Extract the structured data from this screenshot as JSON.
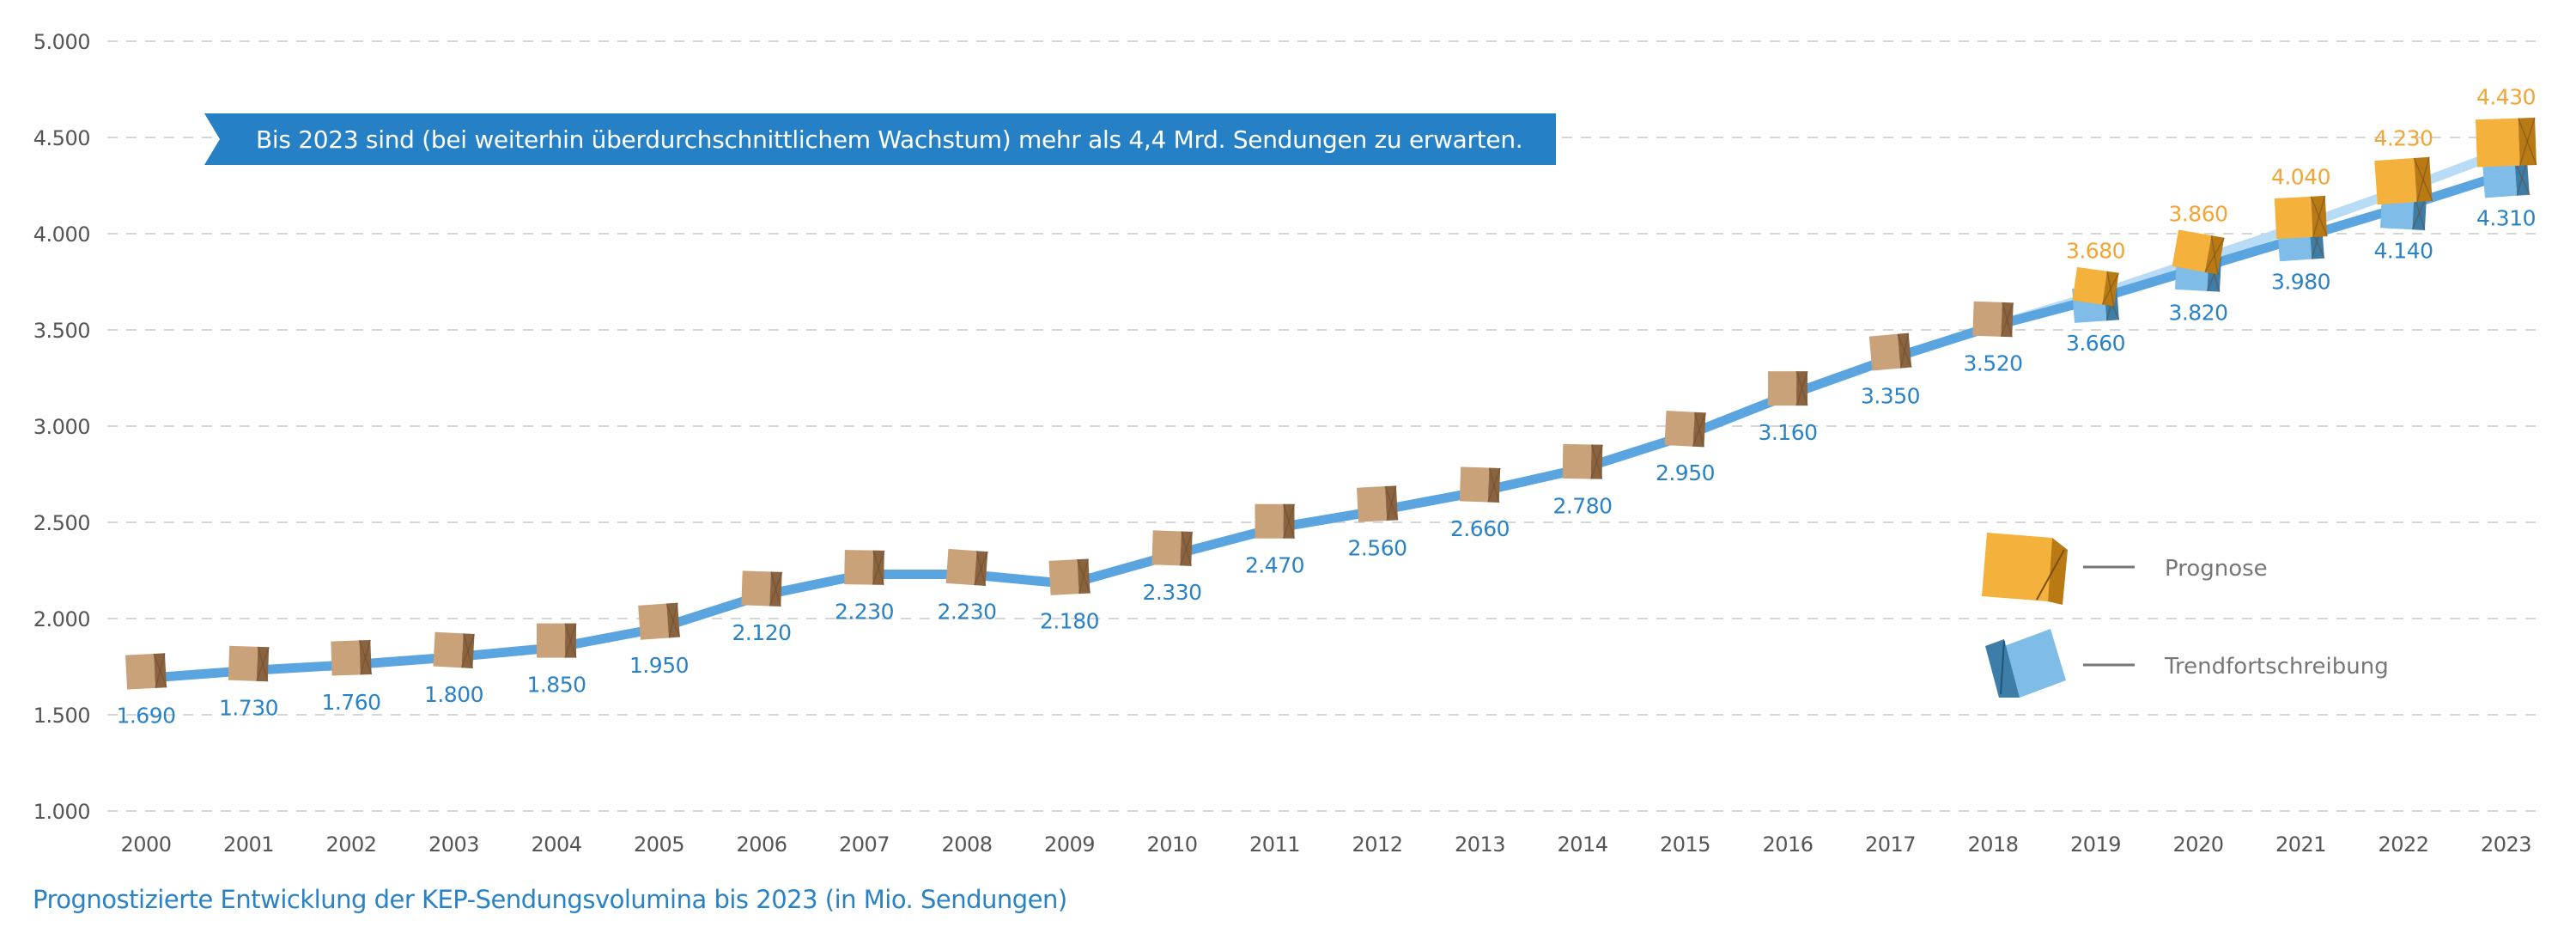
{
  "banner": {
    "text": "Bis 2023 sind (bei weiterhin überdurchschnittlichem Wachstum) mehr als 4,4 Mrd. Sendungen zu erwarten."
  },
  "caption": "Prognostizierte Entwicklung der KEP-Sendungsvolumina bis 2023 (in Mio. Sendungen)",
  "colors": {
    "trend_line": "#5aa5df",
    "prognose_line": "#b8dcf5",
    "trend_label": "#2a82c6",
    "prognose_label": "#f2a532",
    "banner": "#2680c5",
    "gridline": "#d6d6d6",
    "box_brown": "#c9a27a",
    "box_orange": "#f4b13c",
    "box_blue": "#7fbde8"
  },
  "chart_data": {
    "type": "line",
    "title": "Prognostizierte Entwicklung der KEP-Sendungsvolumina bis 2023 (in Mio. Sendungen)",
    "xlabel": "",
    "ylabel": "",
    "ylim": [
      1000,
      5000
    ],
    "yticks": [
      1000,
      1500,
      2000,
      2500,
      3000,
      3500,
      4000,
      4500,
      5000
    ],
    "ytick_labels": [
      "1.000",
      "1.500",
      "2.000",
      "2.500",
      "3.000",
      "3.500",
      "4.000",
      "4.500",
      "5.000"
    ],
    "grid": true,
    "legend_position": "right",
    "categories": [
      "2000",
      "2001",
      "2002",
      "2003",
      "2004",
      "2005",
      "2006",
      "2007",
      "2008",
      "2009",
      "2010",
      "2011",
      "2012",
      "2013",
      "2014",
      "2015",
      "2016",
      "2017",
      "2018",
      "2019",
      "2020",
      "2021",
      "2022",
      "2023"
    ],
    "series": [
      {
        "name": "Trendfortschreibung",
        "values": [
          1690,
          1730,
          1760,
          1800,
          1850,
          1950,
          2120,
          2230,
          2230,
          2180,
          2330,
          2470,
          2560,
          2660,
          2780,
          2950,
          3160,
          3350,
          3520,
          3660,
          3820,
          3980,
          4140,
          4310
        ],
        "labels": [
          "1.690",
          "1.730",
          "1.760",
          "1.800",
          "1.850",
          "1.950",
          "2.120",
          "2.230",
          "2.230",
          "2.180",
          "2.330",
          "2.470",
          "2.560",
          "2.660",
          "2.780",
          "2.950",
          "3.160",
          "3.350",
          "3.520",
          "3.660",
          "3.820",
          "3.980",
          "4.140",
          "4.310"
        ]
      },
      {
        "name": "Prognose",
        "start_index": 18,
        "values": [
          3520,
          3680,
          3860,
          4040,
          4230,
          4430
        ],
        "labels": [
          "3.520",
          "3.680",
          "3.860",
          "4.040",
          "4.230",
          "4.430"
        ]
      }
    ],
    "legend": [
      {
        "label": "Prognose",
        "marker": "orange-box"
      },
      {
        "label": "Trendfortschreibung",
        "marker": "blue-box"
      }
    ],
    "annotations": [
      "Bis 2023 sind (bei weiterhin überdurchschnittlichem Wachstum) mehr als 4,4 Mrd. Sendungen zu erwarten."
    ]
  }
}
